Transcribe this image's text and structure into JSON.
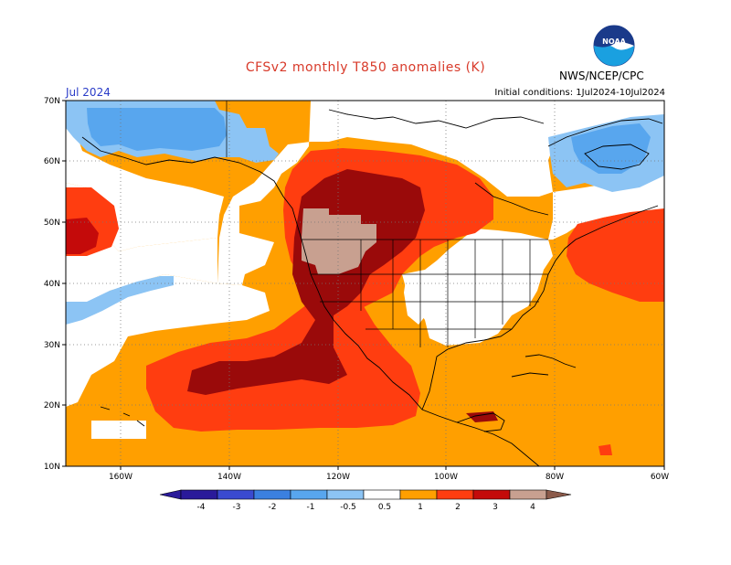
{
  "header": {
    "title": "CFSv2 monthly T850 anomalies (K)",
    "month": "Jul 2024",
    "init": "Initial conditions: 1Jul2024-10Jul2024",
    "agency": "NWS/NCEP/CPC",
    "logo_text": "NOAA"
  },
  "axes": {
    "lat_labels": [
      "70N",
      "60N",
      "50N",
      "40N",
      "30N",
      "20N",
      "10N"
    ],
    "lon_labels": [
      "160W",
      "140W",
      "120W",
      "100W",
      "80W",
      "60W"
    ]
  },
  "colorbar": {
    "labels": [
      "-4",
      "-3",
      "-2",
      "-1",
      "-0.5",
      "0.5",
      "1",
      "2",
      "3",
      "4"
    ],
    "colors": [
      "#2a1a9a",
      "#3a4ad0",
      "#3b80e0",
      "#58a6ee",
      "#8cc4f4",
      "#ffffff",
      "#ff9f00",
      "#ff3d10",
      "#c40a0a",
      "#9a0a0a",
      "#c8a090",
      "#8b5a4a"
    ]
  },
  "legend_colors": {
    "light_blue": "#8cc4f4",
    "blue": "#58a6ee",
    "orange": "#ff9f00",
    "red_orange": "#ff3d10",
    "red": "#c40a0a",
    "dark_red": "#9a0a0a",
    "tan": "#c8a090"
  }
}
